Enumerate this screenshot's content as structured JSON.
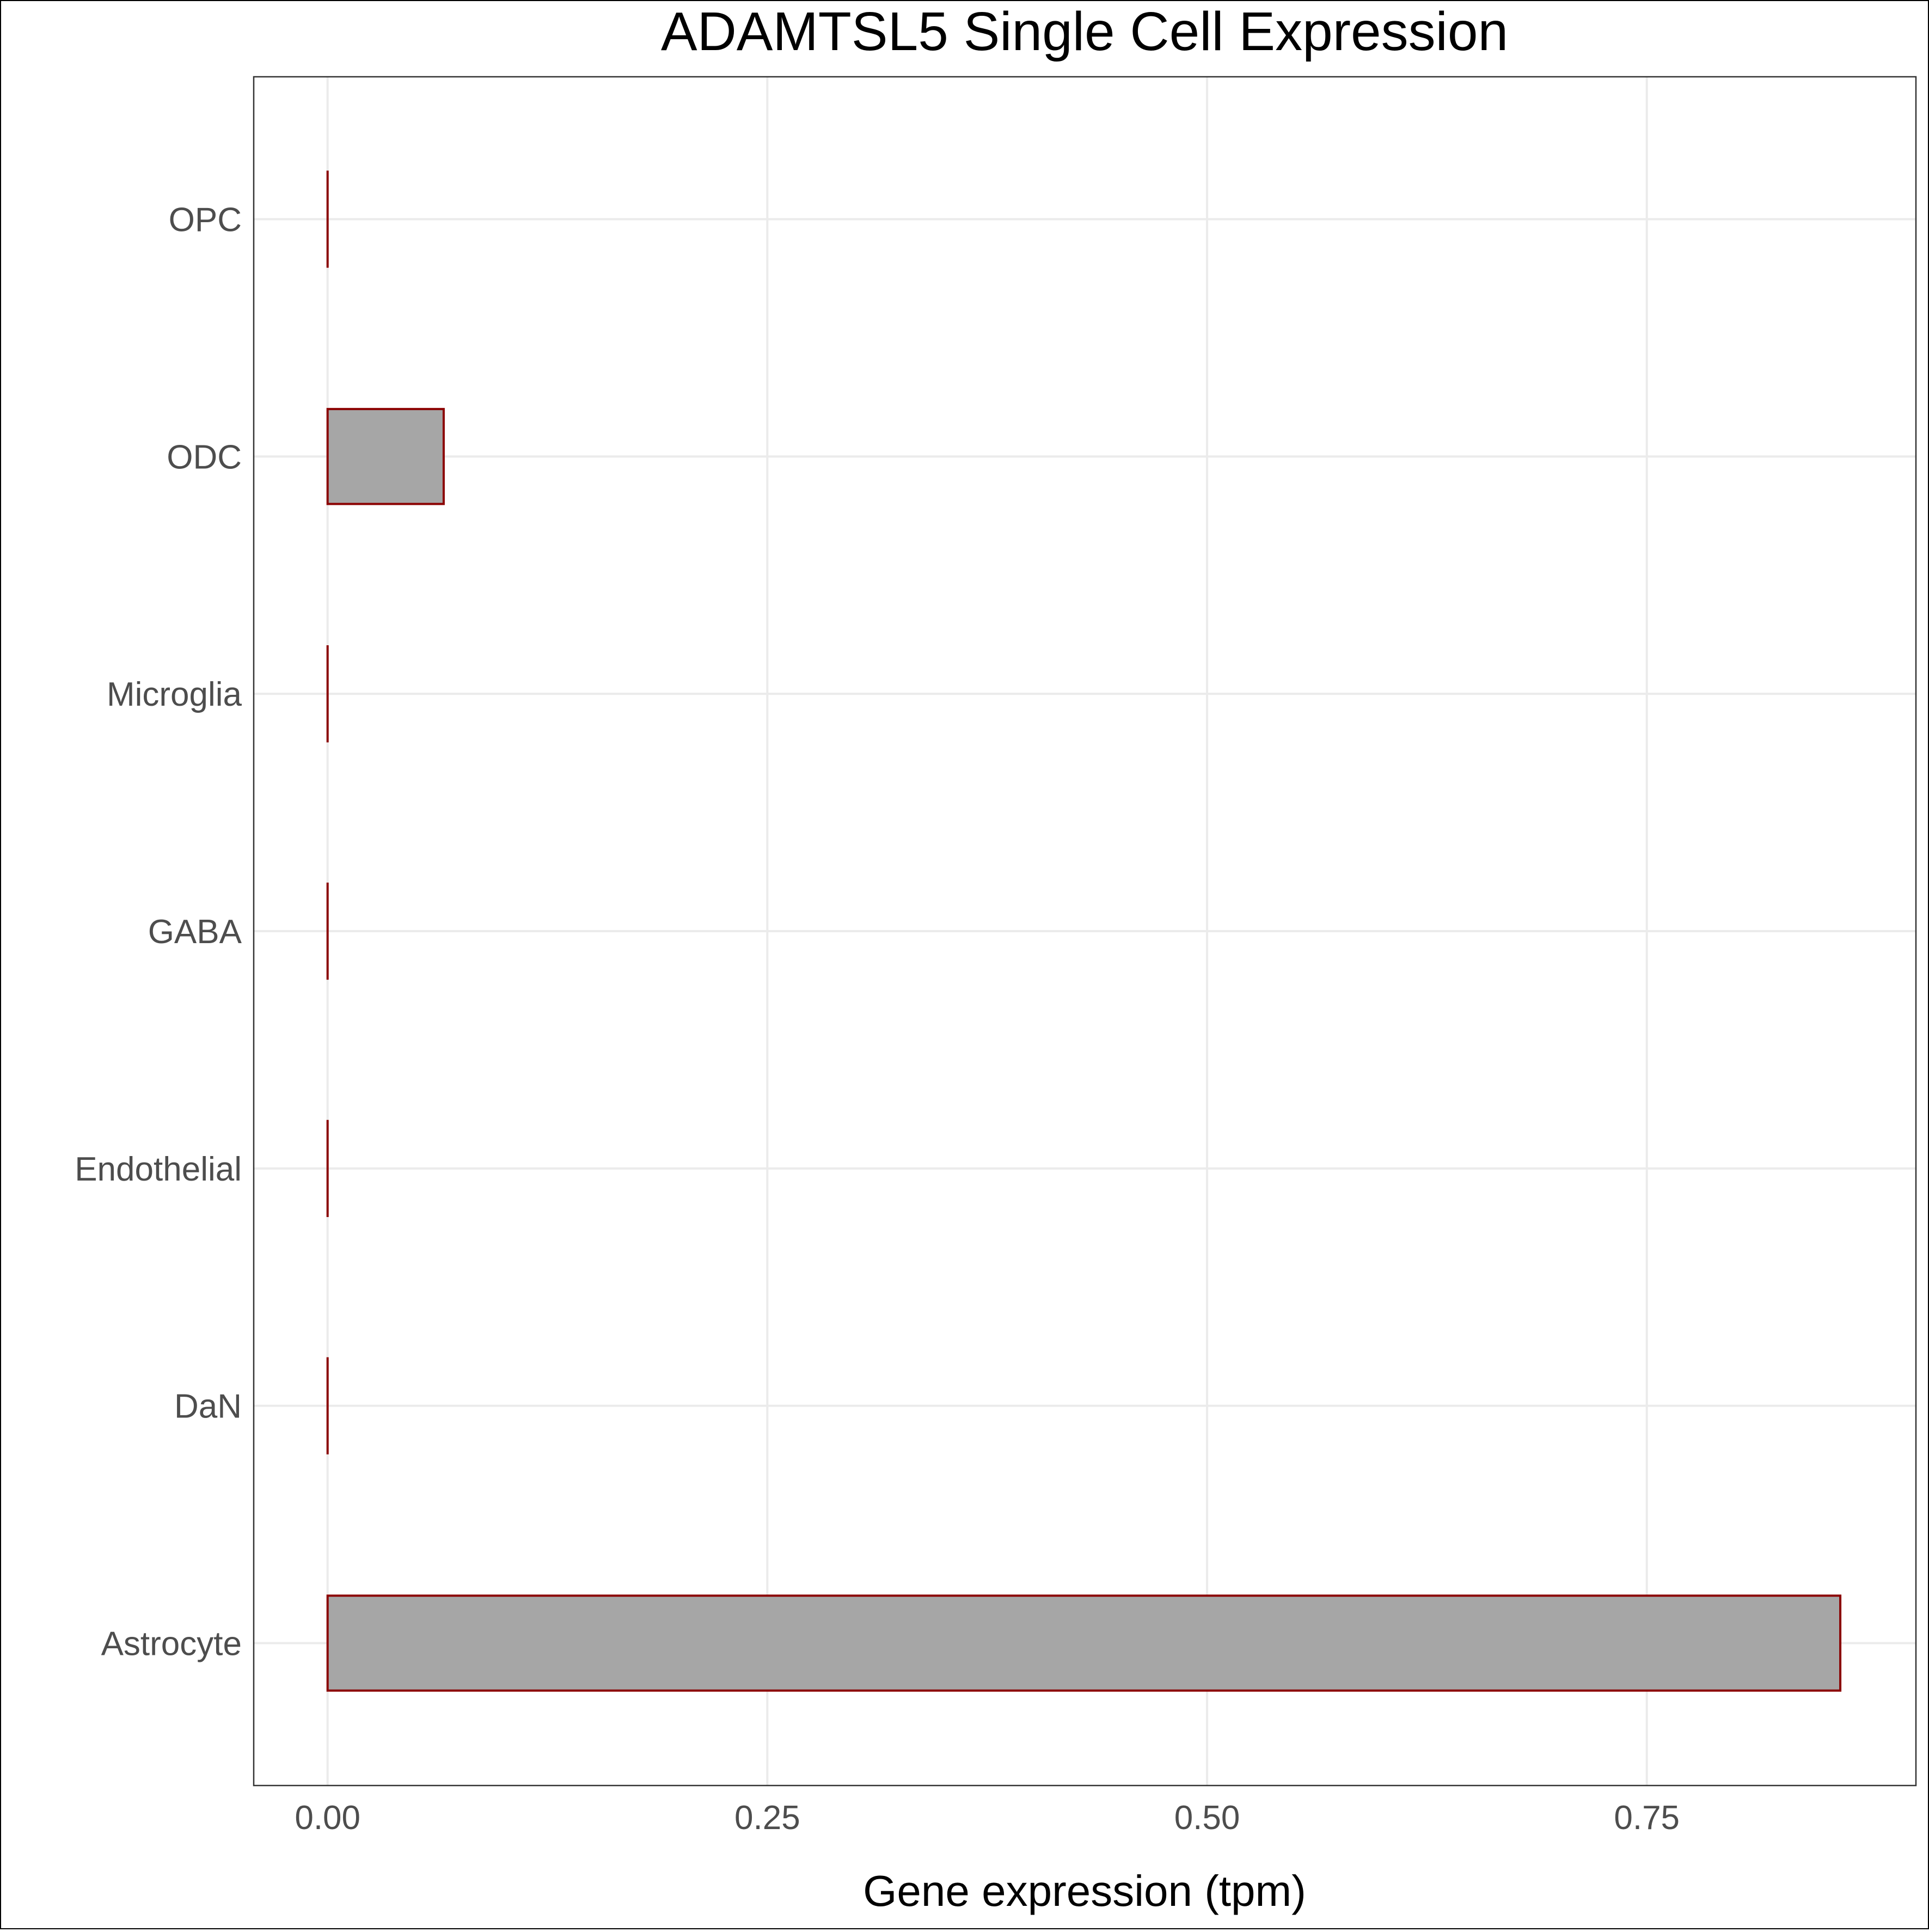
{
  "chart_data": {
    "type": "bar",
    "orientation": "horizontal",
    "title": "ADAMTSL5 Single Cell Expression",
    "xlabel": "Gene expression (tpm)",
    "ylabel": "",
    "categories": [
      "Astrocyte",
      "DaN",
      "Endothelial",
      "GABA",
      "Microglia",
      "ODC",
      "OPC"
    ],
    "values": [
      0.86,
      0.0,
      0.0,
      0.0,
      0.0,
      0.066,
      0.0
    ],
    "xlim": [
      -0.042,
      0.903
    ],
    "xticks": [
      0.0,
      0.25,
      0.5,
      0.75
    ],
    "xtick_labels": [
      "0.00",
      "0.25",
      "0.50",
      "0.75"
    ],
    "grid": true,
    "colors": {
      "bar_fill": "#a6a6a6",
      "bar_stroke": "#8b0000",
      "grid": "#ebebeb",
      "panel_border": "#333333",
      "tick_text": "#4d4d4d"
    }
  }
}
